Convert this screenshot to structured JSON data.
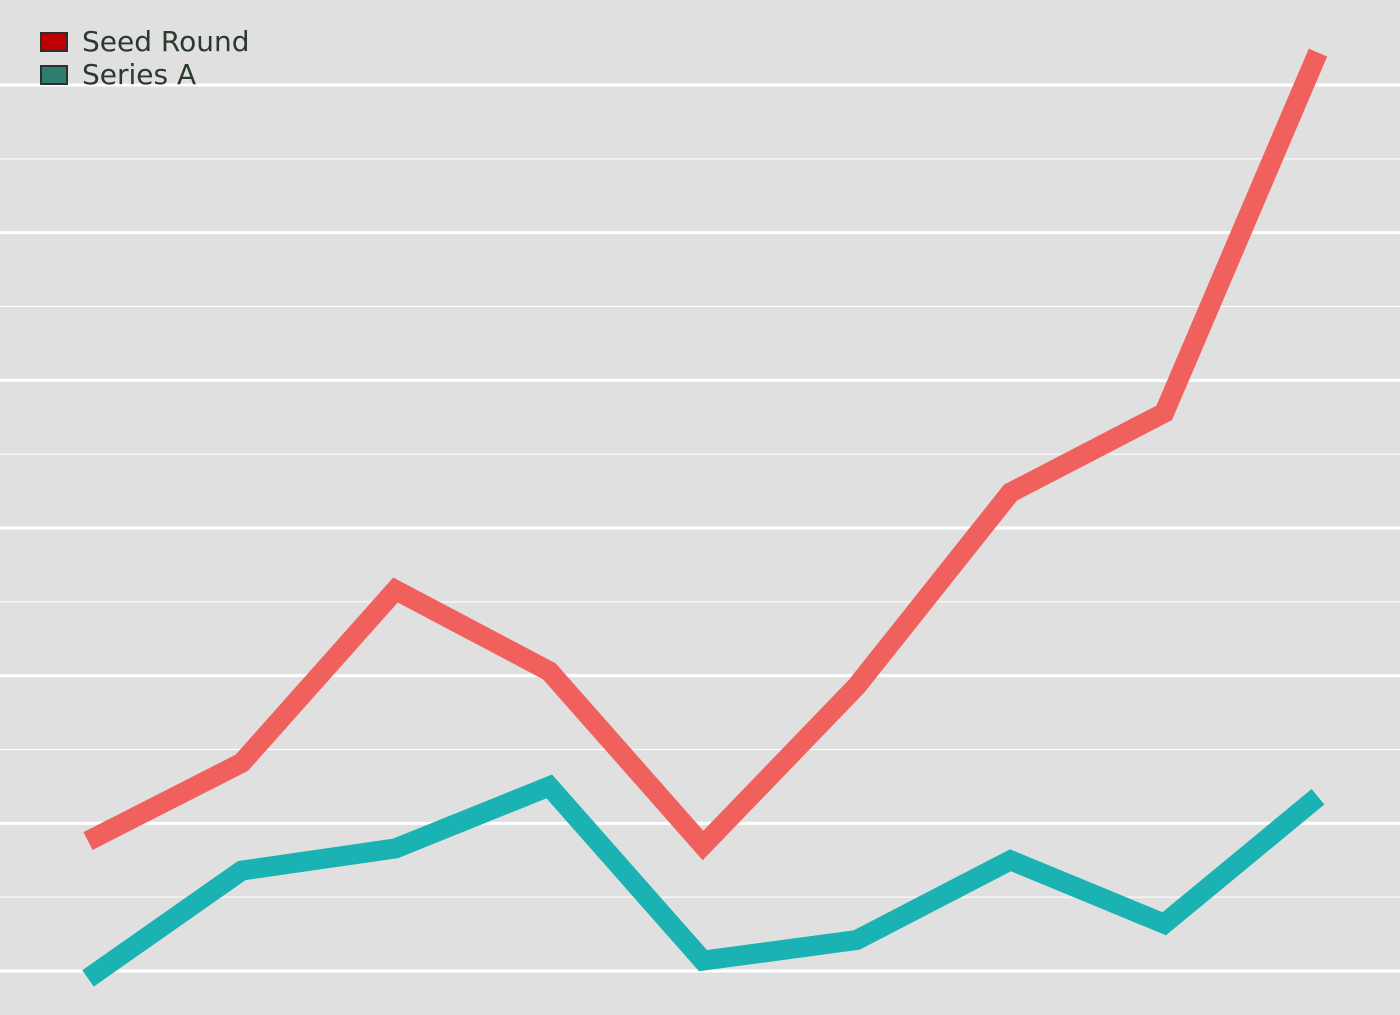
{
  "chart_data": {
    "type": "line",
    "title": "",
    "xlabel": "",
    "ylabel": "",
    "x": [
      1,
      2,
      3,
      4,
      5,
      6,
      7,
      8,
      9
    ],
    "ylim": [
      0,
      6
    ],
    "grid": true,
    "legend_placement": "top-left",
    "series": [
      {
        "name": "Seed Round",
        "color": "#f0615e",
        "legend_color": "#c00000",
        "values": [
          0.88,
          1.41,
          2.58,
          2.03,
          0.85,
          1.93,
          3.24,
          3.78,
          6.22
        ]
      },
      {
        "name": "Series A",
        "color": "#1ab2b2",
        "legend_color": "#2e7d6e",
        "values": [
          -0.05,
          0.68,
          0.83,
          1.25,
          0.07,
          0.21,
          0.75,
          0.32,
          1.18
        ]
      }
    ]
  }
}
